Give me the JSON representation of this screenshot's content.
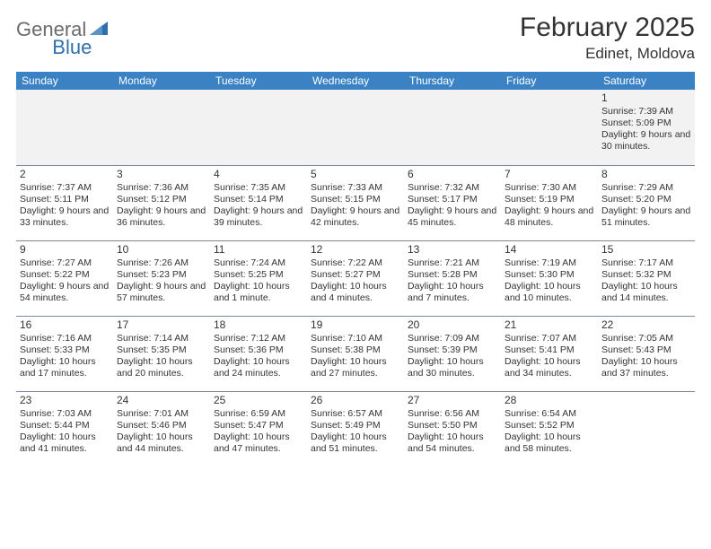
{
  "logo": {
    "text1": "General",
    "text2": "Blue",
    "triangle_color": "#2f6fad"
  },
  "title": "February 2025",
  "subtitle": "Edinet, Moldova",
  "colors": {
    "header_bg": "#3b82c4",
    "header_text": "#ffffff",
    "cell_border": "#7a8aa0",
    "blank_bg": "#f2f2f2",
    "text": "#333333",
    "logo_gray": "#6b6b6b",
    "logo_blue": "#2f6fad"
  },
  "day_headers": [
    "Sunday",
    "Monday",
    "Tuesday",
    "Wednesday",
    "Thursday",
    "Friday",
    "Saturday"
  ],
  "weeks": [
    [
      null,
      null,
      null,
      null,
      null,
      null,
      {
        "n": "1",
        "sunrise": "Sunrise: 7:39 AM",
        "sunset": "Sunset: 5:09 PM",
        "daylight": "Daylight: 9 hours and 30 minutes."
      }
    ],
    [
      {
        "n": "2",
        "sunrise": "Sunrise: 7:37 AM",
        "sunset": "Sunset: 5:11 PM",
        "daylight": "Daylight: 9 hours and 33 minutes."
      },
      {
        "n": "3",
        "sunrise": "Sunrise: 7:36 AM",
        "sunset": "Sunset: 5:12 PM",
        "daylight": "Daylight: 9 hours and 36 minutes."
      },
      {
        "n": "4",
        "sunrise": "Sunrise: 7:35 AM",
        "sunset": "Sunset: 5:14 PM",
        "daylight": "Daylight: 9 hours and 39 minutes."
      },
      {
        "n": "5",
        "sunrise": "Sunrise: 7:33 AM",
        "sunset": "Sunset: 5:15 PM",
        "daylight": "Daylight: 9 hours and 42 minutes."
      },
      {
        "n": "6",
        "sunrise": "Sunrise: 7:32 AM",
        "sunset": "Sunset: 5:17 PM",
        "daylight": "Daylight: 9 hours and 45 minutes."
      },
      {
        "n": "7",
        "sunrise": "Sunrise: 7:30 AM",
        "sunset": "Sunset: 5:19 PM",
        "daylight": "Daylight: 9 hours and 48 minutes."
      },
      {
        "n": "8",
        "sunrise": "Sunrise: 7:29 AM",
        "sunset": "Sunset: 5:20 PM",
        "daylight": "Daylight: 9 hours and 51 minutes."
      }
    ],
    [
      {
        "n": "9",
        "sunrise": "Sunrise: 7:27 AM",
        "sunset": "Sunset: 5:22 PM",
        "daylight": "Daylight: 9 hours and 54 minutes."
      },
      {
        "n": "10",
        "sunrise": "Sunrise: 7:26 AM",
        "sunset": "Sunset: 5:23 PM",
        "daylight": "Daylight: 9 hours and 57 minutes."
      },
      {
        "n": "11",
        "sunrise": "Sunrise: 7:24 AM",
        "sunset": "Sunset: 5:25 PM",
        "daylight": "Daylight: 10 hours and 1 minute."
      },
      {
        "n": "12",
        "sunrise": "Sunrise: 7:22 AM",
        "sunset": "Sunset: 5:27 PM",
        "daylight": "Daylight: 10 hours and 4 minutes."
      },
      {
        "n": "13",
        "sunrise": "Sunrise: 7:21 AM",
        "sunset": "Sunset: 5:28 PM",
        "daylight": "Daylight: 10 hours and 7 minutes."
      },
      {
        "n": "14",
        "sunrise": "Sunrise: 7:19 AM",
        "sunset": "Sunset: 5:30 PM",
        "daylight": "Daylight: 10 hours and 10 minutes."
      },
      {
        "n": "15",
        "sunrise": "Sunrise: 7:17 AM",
        "sunset": "Sunset: 5:32 PM",
        "daylight": "Daylight: 10 hours and 14 minutes."
      }
    ],
    [
      {
        "n": "16",
        "sunrise": "Sunrise: 7:16 AM",
        "sunset": "Sunset: 5:33 PM",
        "daylight": "Daylight: 10 hours and 17 minutes."
      },
      {
        "n": "17",
        "sunrise": "Sunrise: 7:14 AM",
        "sunset": "Sunset: 5:35 PM",
        "daylight": "Daylight: 10 hours and 20 minutes."
      },
      {
        "n": "18",
        "sunrise": "Sunrise: 7:12 AM",
        "sunset": "Sunset: 5:36 PM",
        "daylight": "Daylight: 10 hours and 24 minutes."
      },
      {
        "n": "19",
        "sunrise": "Sunrise: 7:10 AM",
        "sunset": "Sunset: 5:38 PM",
        "daylight": "Daylight: 10 hours and 27 minutes."
      },
      {
        "n": "20",
        "sunrise": "Sunrise: 7:09 AM",
        "sunset": "Sunset: 5:39 PM",
        "daylight": "Daylight: 10 hours and 30 minutes."
      },
      {
        "n": "21",
        "sunrise": "Sunrise: 7:07 AM",
        "sunset": "Sunset: 5:41 PM",
        "daylight": "Daylight: 10 hours and 34 minutes."
      },
      {
        "n": "22",
        "sunrise": "Sunrise: 7:05 AM",
        "sunset": "Sunset: 5:43 PM",
        "daylight": "Daylight: 10 hours and 37 minutes."
      }
    ],
    [
      {
        "n": "23",
        "sunrise": "Sunrise: 7:03 AM",
        "sunset": "Sunset: 5:44 PM",
        "daylight": "Daylight: 10 hours and 41 minutes."
      },
      {
        "n": "24",
        "sunrise": "Sunrise: 7:01 AM",
        "sunset": "Sunset: 5:46 PM",
        "daylight": "Daylight: 10 hours and 44 minutes."
      },
      {
        "n": "25",
        "sunrise": "Sunrise: 6:59 AM",
        "sunset": "Sunset: 5:47 PM",
        "daylight": "Daylight: 10 hours and 47 minutes."
      },
      {
        "n": "26",
        "sunrise": "Sunrise: 6:57 AM",
        "sunset": "Sunset: 5:49 PM",
        "daylight": "Daylight: 10 hours and 51 minutes."
      },
      {
        "n": "27",
        "sunrise": "Sunrise: 6:56 AM",
        "sunset": "Sunset: 5:50 PM",
        "daylight": "Daylight: 10 hours and 54 minutes."
      },
      {
        "n": "28",
        "sunrise": "Sunrise: 6:54 AM",
        "sunset": "Sunset: 5:52 PM",
        "daylight": "Daylight: 10 hours and 58 minutes."
      },
      null
    ]
  ]
}
